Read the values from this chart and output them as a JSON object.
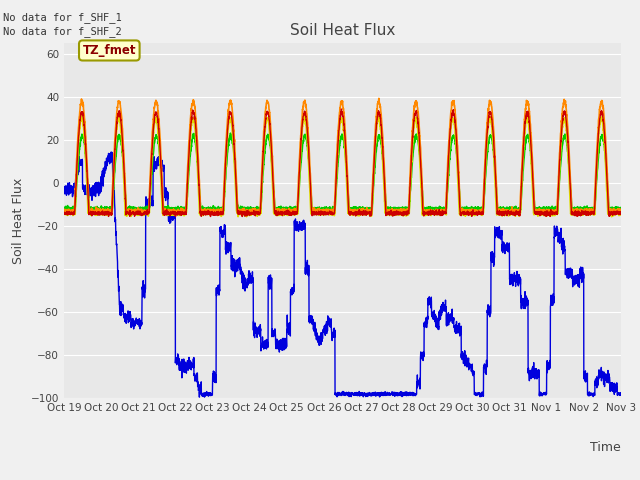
{
  "title": "Soil Heat Flux",
  "ylabel": "Soil Heat Flux",
  "xlabel": "Time",
  "ylim": [
    -100,
    65
  ],
  "yticks": [
    -100,
    -80,
    -60,
    -40,
    -20,
    0,
    20,
    40,
    60
  ],
  "no_data_text_1": "No data for f_SHF_1",
  "no_data_text_2": "No data for f_SHF_2",
  "tz_label": "TZ_fmet",
  "series_colors": {
    "SHF1": "#cc0000",
    "SHF2": "#ff8800",
    "SHF3": "#dddd00",
    "SHF4": "#00cc00",
    "SHF5": "#0000dd"
  },
  "legend_colors": {
    "SHF1": "#dd0000",
    "SHF2": "#ff8800",
    "SHF3": "#ffff00",
    "SHF4": "#00dd00",
    "SHF5": "#0000dd"
  },
  "background_color": "#e8e8e8",
  "plot_bg_color": "#d8d8d8",
  "grid_color": "#ffffff",
  "tick_labels": [
    "Oct 19",
    "Oct 20",
    "Oct 21",
    "Oct 22",
    "Oct 23",
    "Oct 24",
    "Oct 25",
    "Oct 26",
    "Oct 27",
    "Oct 28",
    "Oct 29",
    "Oct 30",
    "Oct 31",
    "Nov 1",
    "Nov 2",
    "Nov 3"
  ],
  "n_days": 15
}
